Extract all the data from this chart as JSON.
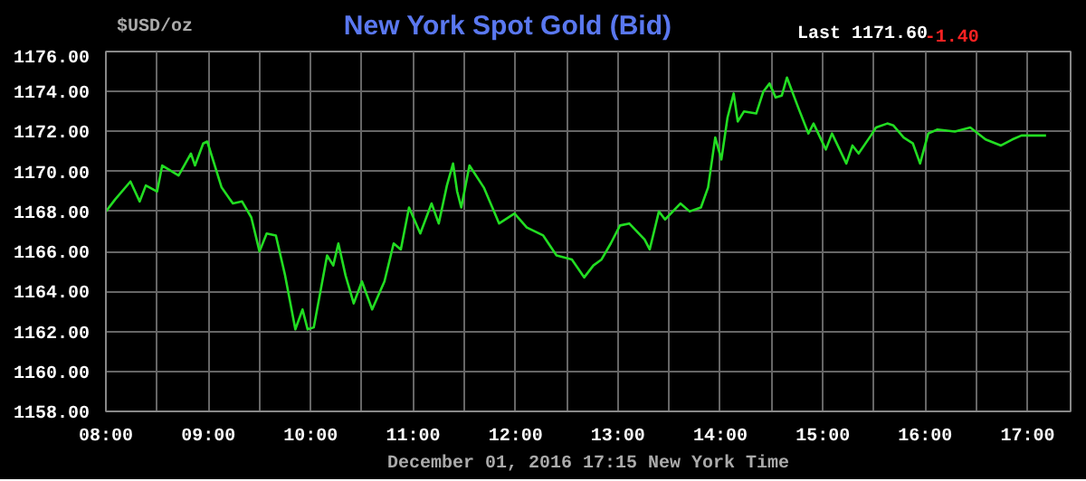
{
  "chart_data": {
    "type": "line",
    "title": "New York Spot Gold (Bid)",
    "ylabel": "$USD/oz",
    "xlabel": "December 01, 2016 17:15 New York Time",
    "annotations": [
      "Last 1171.60",
      "-1.40"
    ],
    "x": [
      8.0,
      8.09,
      8.24,
      8.33,
      8.39,
      8.5,
      8.55,
      8.71,
      8.83,
      8.87,
      8.95,
      8.99,
      9.13,
      9.24,
      9.33,
      9.42,
      9.5,
      9.57,
      9.66,
      9.75,
      9.85,
      9.92,
      9.97,
      10.03,
      10.16,
      10.22,
      10.27,
      10.34,
      10.42,
      10.5,
      10.6,
      10.72,
      10.81,
      10.88,
      10.96,
      11.07,
      11.18,
      11.25,
      11.33,
      11.39,
      11.43,
      11.47,
      11.55,
      11.69,
      11.84,
      11.99,
      12.11,
      12.27,
      12.4,
      12.55,
      12.67,
      12.76,
      12.84,
      12.93,
      13.02,
      13.11,
      13.26,
      13.31,
      13.4,
      13.46,
      13.61,
      13.7,
      13.81,
      13.88,
      13.95,
      14.01,
      14.07,
      14.13,
      14.17,
      14.23,
      14.35,
      14.42,
      14.48,
      14.54,
      14.6,
      14.65,
      14.76,
      14.86,
      14.91,
      15.03,
      15.09,
      15.23,
      15.29,
      15.35,
      15.47,
      15.52,
      15.63,
      15.69,
      15.79,
      15.88,
      15.95,
      16.03,
      16.12,
      16.29,
      16.44,
      16.59,
      16.74,
      16.85,
      16.94,
      17.18
    ],
    "series": [
      {
        "color": "#22dd22",
        "values": [
          1168.0,
          1168.6,
          1169.5,
          1168.5,
          1169.3,
          1169.0,
          1170.3,
          1169.8,
          1170.9,
          1170.3,
          1171.4,
          1171.5,
          1169.2,
          1168.4,
          1168.5,
          1167.7,
          1166.0,
          1166.9,
          1166.8,
          1164.8,
          1162.1,
          1163.1,
          1162.1,
          1162.2,
          1165.8,
          1165.3,
          1166.4,
          1164.8,
          1163.4,
          1164.5,
          1163.1,
          1164.5,
          1166.4,
          1166.1,
          1168.2,
          1166.9,
          1168.4,
          1167.4,
          1169.3,
          1170.4,
          1169.0,
          1168.2,
          1170.3,
          1169.2,
          1167.4,
          1167.9,
          1167.2,
          1166.8,
          1165.8,
          1165.6,
          1164.7,
          1165.3,
          1165.6,
          1166.4,
          1167.3,
          1167.4,
          1166.6,
          1166.1,
          1168.0,
          1167.6,
          1168.4,
          1168.0,
          1168.2,
          1169.2,
          1171.7,
          1170.6,
          1172.7,
          1173.9,
          1172.5,
          1173.0,
          1172.9,
          1174.0,
          1174.4,
          1173.7,
          1173.8,
          1174.7,
          1173.2,
          1171.9,
          1172.4,
          1171.1,
          1171.9,
          1170.4,
          1171.3,
          1170.9,
          1171.8,
          1172.2,
          1172.4,
          1172.3,
          1171.7,
          1171.4,
          1170.4,
          1171.9,
          1172.1,
          1172.0,
          1172.2,
          1171.6,
          1171.3,
          1171.6,
          1171.8,
          1171.8
        ]
      }
    ],
    "xlim": [
      8,
      17.42
    ],
    "ylim": [
      1158,
      1176
    ],
    "xticks": [
      {
        "value": 8,
        "label": "08:00"
      },
      {
        "value": 8.5,
        "label": null
      },
      {
        "value": 9,
        "label": "09:00"
      },
      {
        "value": 9.5,
        "label": null
      },
      {
        "value": 10,
        "label": "10:00"
      },
      {
        "value": 10.5,
        "label": null
      },
      {
        "value": 11,
        "label": "11:00"
      },
      {
        "value": 11.5,
        "label": null
      },
      {
        "value": 12,
        "label": "12:00"
      },
      {
        "value": 12.5,
        "label": null
      },
      {
        "value": 13,
        "label": "13:00"
      },
      {
        "value": 13.5,
        "label": null
      },
      {
        "value": 14,
        "label": "14:00"
      },
      {
        "value": 14.5,
        "label": null
      },
      {
        "value": 15,
        "label": "15:00"
      },
      {
        "value": 15.5,
        "label": null
      },
      {
        "value": 16,
        "label": "16:00"
      },
      {
        "value": 16.5,
        "label": null
      },
      {
        "value": 17,
        "label": "17:00"
      }
    ],
    "yticks": [
      {
        "value": 1158,
        "label": "1158.00"
      },
      {
        "value": 1160,
        "label": "1160.00"
      },
      {
        "value": 1162,
        "label": "1162.00"
      },
      {
        "value": 1164,
        "label": "1164.00"
      },
      {
        "value": 1166,
        "label": "1166.00"
      },
      {
        "value": 1168,
        "label": "1168.00"
      },
      {
        "value": 1170,
        "label": "1170.00"
      },
      {
        "value": 1172,
        "label": "1172.00"
      },
      {
        "value": 1174,
        "label": "1174.00"
      },
      {
        "value": 1176,
        "label": "1176.00"
      }
    ],
    "grid": true,
    "line_style": "solid",
    "marker": "none"
  }
}
